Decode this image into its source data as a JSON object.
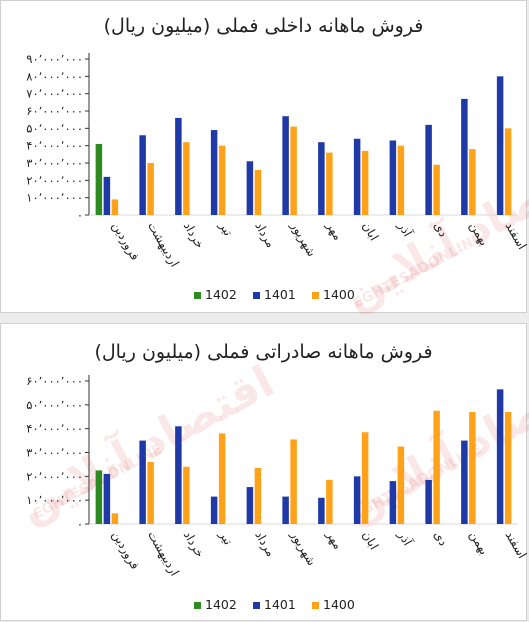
{
  "watermark": {
    "text": "اقتصاد آنلاین",
    "sub": "EGHTESADONLINE"
  },
  "colors": {
    "s1402": "#2e8b22",
    "s1401": "#1f3aa6",
    "s1400": "#ffa21a",
    "axis": "#d9d9d9",
    "grid": "#333333"
  },
  "chart_data": [
    {
      "type": "bar",
      "title": "فروش ماهانه داخلی فملی (میلیون ریال)",
      "categories": [
        "فروردین",
        "اردیبهشت",
        "خرداد",
        "تیر",
        "مرداد",
        "شهریور",
        "مهر",
        "ابان",
        "آذر",
        "دی",
        "بهمن",
        "اسفند"
      ],
      "series": [
        {
          "name": "1402",
          "color": "#2e8b22",
          "values": [
            41000000,
            null,
            null,
            null,
            null,
            null,
            null,
            null,
            null,
            null,
            null,
            null
          ]
        },
        {
          "name": "1401",
          "color": "#1f3aa6",
          "values": [
            22000000,
            46000000,
            56000000,
            49000000,
            31000000,
            57000000,
            42000000,
            44000000,
            43000000,
            52000000,
            67000000,
            80000000
          ]
        },
        {
          "name": "1400",
          "color": "#ffa21a",
          "values": [
            9000000,
            30000000,
            42000000,
            40000000,
            26000000,
            51000000,
            36000000,
            37000000,
            40000000,
            29000000,
            38000000,
            50000000
          ]
        }
      ],
      "ylim": [
        0,
        90000000
      ],
      "yticks": [
        "۰",
        "۱۰٬۰۰۰٬۰۰۰",
        "۲۰٬۰۰۰٬۰۰۰",
        "۳۰٬۰۰۰٬۰۰۰",
        "۴۰٬۰۰۰٬۰۰۰",
        "۵۰٬۰۰۰٬۰۰۰",
        "۶۰٬۰۰۰٬۰۰۰",
        "۷۰٬۰۰۰٬۰۰۰",
        "۸۰٬۰۰۰٬۰۰۰",
        "۹۰٬۰۰۰٬۰۰۰"
      ],
      "legend": {
        "position": "bottom",
        "entries": [
          "1402",
          "1401",
          "1400"
        ]
      },
      "grid": false
    },
    {
      "type": "bar",
      "title": "فروش ماهانه صادراتی فملی (میلیون ریال)",
      "categories": [
        "فروردین",
        "اردیبهشت",
        "خرداد",
        "تیر",
        "مرداد",
        "شهریور",
        "مهر",
        "ابان",
        "آذر",
        "دی",
        "بهمن",
        "اسفند"
      ],
      "series": [
        {
          "name": "1402",
          "color": "#2e8b22",
          "values": [
            22500000,
            null,
            null,
            null,
            null,
            null,
            null,
            null,
            null,
            null,
            null,
            null
          ]
        },
        {
          "name": "1401",
          "color": "#1f3aa6",
          "values": [
            21000000,
            35000000,
            41000000,
            11500000,
            15500000,
            11500000,
            11000000,
            20000000,
            18000000,
            18500000,
            35000000,
            56500000
          ]
        },
        {
          "name": "1400",
          "color": "#ffa21a",
          "values": [
            4500000,
            26000000,
            24000000,
            38000000,
            23500000,
            35500000,
            18500000,
            38500000,
            32500000,
            47500000,
            47000000,
            47000000
          ]
        }
      ],
      "ylim": [
        0,
        60000000
      ],
      "yticks": [
        "۰",
        "۱۰٬۰۰۰٬۰۰۰",
        "۲۰٬۰۰۰٬۰۰۰",
        "۳۰٬۰۰۰٬۰۰۰",
        "۴۰٬۰۰۰٬۰۰۰",
        "۵۰٬۰۰۰٬۰۰۰",
        "۶۰٬۰۰۰٬۰۰۰"
      ],
      "legend": {
        "position": "bottom",
        "entries": [
          "1402",
          "1401",
          "1400"
        ]
      },
      "grid": false
    }
  ]
}
